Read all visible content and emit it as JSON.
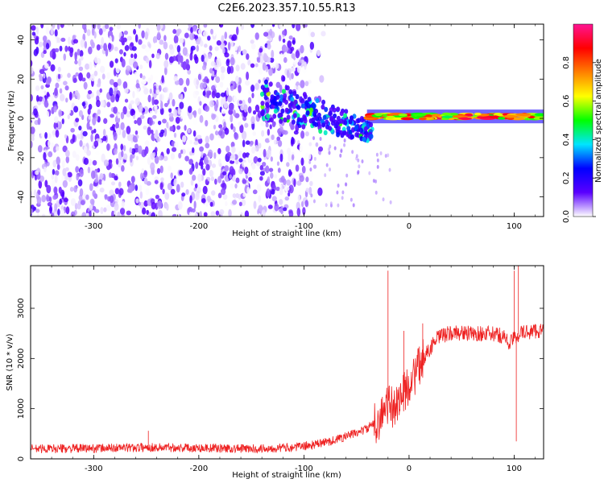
{
  "figure": {
    "title": "C2E6.2023.357.10.55.R13"
  },
  "chart_data": [
    {
      "type": "heatmap",
      "title": "C2E6.2023.357.10.55.R13",
      "xlabel": "Height of straight line (km)",
      "ylabel": "Frequency (Hz)",
      "xlim": [
        -360,
        128
      ],
      "ylim": [
        -50,
        48
      ],
      "xticks": [
        -300,
        -200,
        -100,
        0,
        100
      ],
      "yticks": [
        -40,
        -20,
        0,
        20,
        40
      ],
      "description_regions": [
        {
          "x_range": [
            -360,
            -90
          ],
          "freq_range": [
            -50,
            48
          ],
          "level": 0.1
        },
        {
          "x_range": [
            -140,
            -40
          ],
          "freq_range": [
            -20,
            12
          ],
          "level": 0.4
        },
        {
          "x_range": [
            -40,
            128
          ],
          "freq_range": [
            -1,
            3
          ],
          "level": 0.95
        }
      ],
      "colorbar": {
        "label": "Normalized spectral amplitude",
        "range": [
          0,
          1
        ],
        "ticks": [
          0.0,
          0.2,
          0.4,
          0.6,
          0.8
        ],
        "colors": [
          "#ffffff",
          "#5a00ff",
          "#0000ff",
          "#00e5ff",
          "#00ff00",
          "#ffff00",
          "#ff8000",
          "#ff0000",
          "#ff1493"
        ]
      }
    },
    {
      "type": "line",
      "xlabel": "Height of straight line (km)",
      "ylabel": "SNR (10 * v/v)",
      "xlim": [
        -360,
        128
      ],
      "ylim": [
        0,
        3850
      ],
      "xticks": [
        -300,
        -200,
        -100,
        0,
        100
      ],
      "yticks": [
        0,
        1000,
        2000,
        3000
      ],
      "series": [
        {
          "color": "#ee2222",
          "x": [
            -360,
            -300,
            -250,
            -200,
            -150,
            -110,
            -90,
            -70,
            -50,
            -40,
            -30,
            -25,
            -20,
            -15,
            -10,
            -5,
            0,
            5,
            10,
            15,
            20,
            25,
            30,
            40,
            50,
            60,
            70,
            80,
            90,
            95,
            100,
            105,
            110,
            120,
            128
          ],
          "y": [
            200,
            210,
            230,
            220,
            200,
            230,
            280,
            380,
            520,
            600,
            750,
            900,
            1100,
            1000,
            1200,
            1300,
            1500,
            1650,
            1850,
            2050,
            2200,
            2350,
            2450,
            2500,
            2520,
            2480,
            2500,
            2480,
            2450,
            2300,
            2400,
            2500,
            2520,
            2550,
            2560
          ],
          "spikes": [
            {
              "x": -248,
              "y": 560
            },
            {
              "x": -20,
              "y": 3750
            },
            {
              "x": -5,
              "y": 2550
            },
            {
              "x": 13,
              "y": 2700
            },
            {
              "x": 100,
              "y": 3750
            },
            {
              "x": 104,
              "y": 3850
            },
            {
              "x": 102,
              "y": 350
            }
          ]
        }
      ]
    }
  ]
}
